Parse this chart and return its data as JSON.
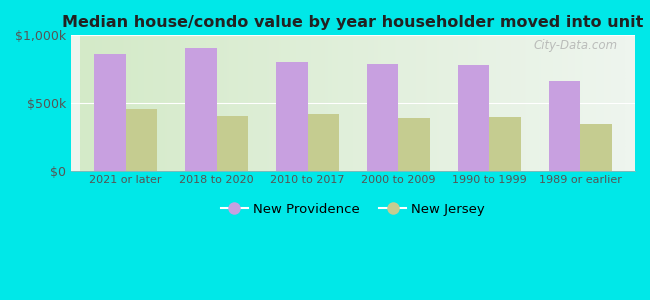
{
  "title": "Median house/condo value by year householder moved into unit",
  "categories": [
    "2021 or later",
    "2018 to 2020",
    "2010 to 2017",
    "2000 to 2009",
    "1990 to 1999",
    "1989 or earlier"
  ],
  "new_providence": [
    860000,
    910000,
    800000,
    790000,
    780000,
    660000
  ],
  "new_jersey": [
    455000,
    405000,
    415000,
    390000,
    395000,
    345000
  ],
  "color_np": "#c8a0e0",
  "color_nj": "#c5cc90",
  "bg_outer": "#00e8e8",
  "bg_inner_left": "#d4eac8",
  "bg_inner_right": "#eef5ee",
  "ylim": [
    0,
    1000000
  ],
  "yticks": [
    0,
    500000,
    1000000
  ],
  "ytick_labels": [
    "$0",
    "$500k",
    "$1,000k"
  ],
  "legend_np": "New Providence",
  "legend_nj": "New Jersey",
  "bar_width": 0.35,
  "watermark": "City-Data.com"
}
